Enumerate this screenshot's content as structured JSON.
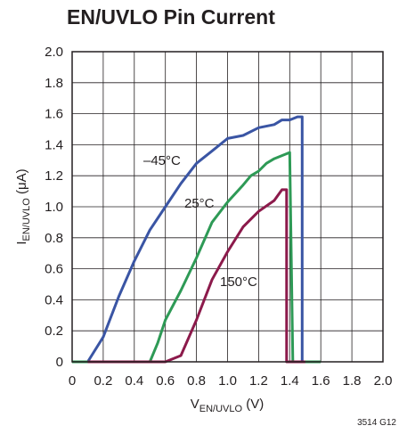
{
  "chart_data": {
    "type": "line",
    "title": "EN/UVLO Pin Current",
    "xlabel_main": "V",
    "xlabel_sub": "EN/UVLO",
    "xlabel_unit": " (V)",
    "ylabel_main": "I",
    "ylabel_sub": "EN/UVLO",
    "ylabel_unit": " (μA)",
    "xlim": [
      0,
      2.0
    ],
    "ylim": [
      0,
      2.0
    ],
    "x_ticks": [
      "0",
      "0.2",
      "0.4",
      "0.6",
      "0.8",
      "1.0",
      "1.2",
      "1.4",
      "1.6",
      "1.8",
      "2.0"
    ],
    "y_ticks": [
      "0",
      "0.2",
      "0.4",
      "0.6",
      "0.8",
      "1.0",
      "1.2",
      "1.4",
      "1.6",
      "1.8",
      "2.0"
    ],
    "grid": true,
    "figure_id": "3514 G12",
    "series": [
      {
        "name": "–45°C",
        "color": "#3a55a4",
        "x": [
          0,
          0.1,
          0.2,
          0.3,
          0.4,
          0.5,
          0.6,
          0.7,
          0.8,
          0.9,
          1.0,
          1.1,
          1.2,
          1.3,
          1.35,
          1.4,
          1.45,
          1.48,
          1.48,
          1.47
        ],
        "y": [
          0,
          0,
          0.16,
          0.42,
          0.65,
          0.85,
          1.0,
          1.15,
          1.28,
          1.36,
          1.44,
          1.46,
          1.51,
          1.53,
          1.56,
          1.56,
          1.58,
          1.58,
          0,
          0
        ]
      },
      {
        "name": "25°C",
        "color": "#2e9a56",
        "x": [
          0,
          0.5,
          0.55,
          0.6,
          0.7,
          0.8,
          0.9,
          1.0,
          1.1,
          1.15,
          1.2,
          1.25,
          1.3,
          1.35,
          1.4,
          1.42,
          1.45,
          1.6
        ],
        "y": [
          0,
          0,
          0.12,
          0.27,
          0.46,
          0.67,
          0.9,
          1.03,
          1.14,
          1.2,
          1.23,
          1.28,
          1.31,
          1.33,
          1.35,
          0,
          0,
          0
        ]
      },
      {
        "name": "150°C",
        "color": "#8c1a4b",
        "x": [
          0.1,
          0.6,
          0.7,
          0.8,
          0.9,
          1.0,
          1.1,
          1.2,
          1.3,
          1.35,
          1.38,
          1.38,
          1.42,
          1.5
        ],
        "y": [
          0,
          0,
          0.04,
          0.27,
          0.53,
          0.71,
          0.87,
          0.97,
          1.04,
          1.11,
          1.11,
          0,
          0,
          0
        ]
      }
    ]
  }
}
